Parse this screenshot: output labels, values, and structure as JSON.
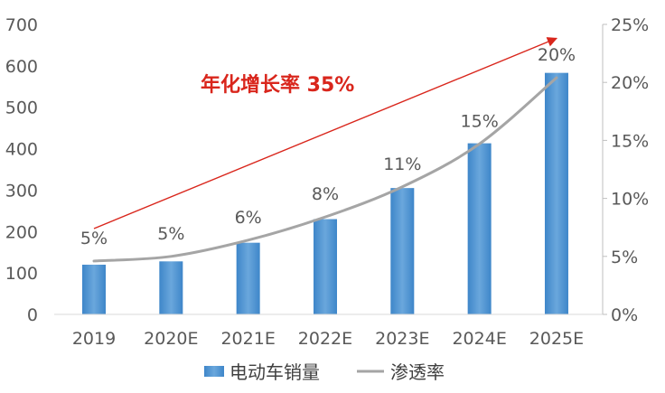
{
  "chart_data": {
    "type": "bar",
    "title": "",
    "categories": [
      "2019",
      "2020E",
      "2021E",
      "2022E",
      "2023E",
      "2024E",
      "2025E"
    ],
    "series": [
      {
        "name": "电动车销量",
        "type": "bar",
        "axis": "left",
        "color": "#5b9bd5",
        "values": [
          120,
          128,
          173,
          230,
          305,
          413,
          583
        ]
      },
      {
        "name": "渗透率",
        "type": "line",
        "axis": "right",
        "color": "#a5a5a5",
        "values": [
          4.6,
          5.0,
          6.4,
          8.4,
          11.0,
          14.7,
          20.4
        ],
        "labels": [
          "5%",
          "5%",
          "6%",
          "8%",
          "11%",
          "15%",
          "20%"
        ]
      }
    ],
    "y_left": {
      "ylim": [
        0,
        700
      ],
      "ticks": [
        0,
        100,
        200,
        300,
        400,
        500,
        600,
        700
      ],
      "tick_labels": [
        "0",
        "100",
        "200",
        "300",
        "400",
        "500",
        "600",
        "700"
      ]
    },
    "y_right": {
      "ylim": [
        0,
        25
      ],
      "ticks": [
        0,
        5,
        10,
        15,
        20,
        25
      ],
      "tick_labels": [
        "0%",
        "5%",
        "10%",
        "15%",
        "20%",
        "25%"
      ]
    },
    "annotation": {
      "text": "年化增长率 35%",
      "color": "#d9261c",
      "arrow": {
        "from_category": "2019",
        "from_value": 7.4,
        "to_category": "2025E",
        "to_value": 23.8
      }
    },
    "grid": false,
    "legend": "bottom"
  }
}
